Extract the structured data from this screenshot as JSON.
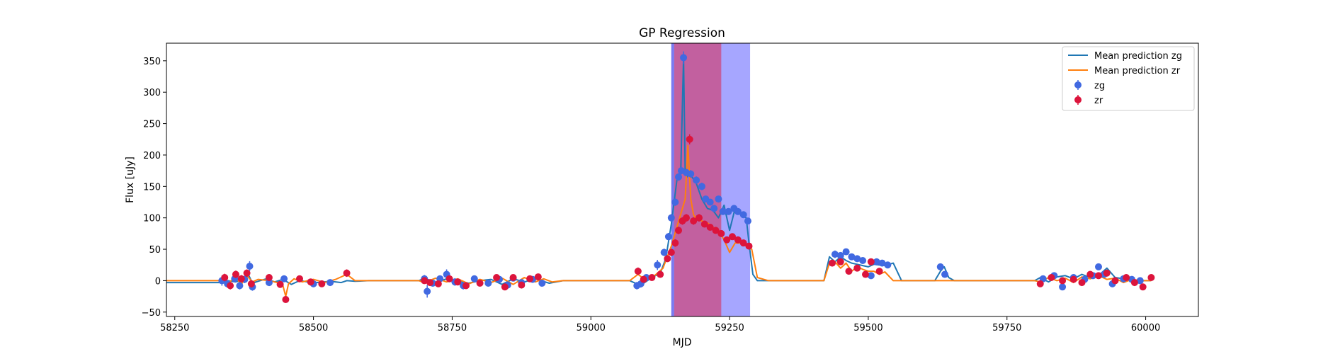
{
  "chart_data": {
    "type": "scatter",
    "title": "GP Regression",
    "xlabel": "MJD",
    "ylabel": "Flux [uJy]",
    "xlim": [
      58235,
      60095
    ],
    "ylim": [
      -57,
      378
    ],
    "xticks": [
      58250,
      58500,
      58750,
      59000,
      59250,
      59500,
      59750,
      60000
    ],
    "xtick_labels": [
      "58250",
      "58500",
      "58750",
      "59000",
      "59250",
      "59500",
      "59750",
      "60000"
    ],
    "yticks": [
      -50,
      0,
      50,
      100,
      150,
      200,
      250,
      300,
      350
    ],
    "ytick_labels": [
      "−50",
      "0",
      "50",
      "100",
      "150",
      "200",
      "250",
      "300",
      "350"
    ],
    "grid": false,
    "legend_position": "top-right",
    "legend": [
      {
        "label": "Mean prediction zg",
        "kind": "line",
        "color": "#1f77b4"
      },
      {
        "label": "Mean prediction zr",
        "kind": "line",
        "color": "#ff7f0e"
      },
      {
        "label": "zg",
        "kind": "errorbar-marker",
        "color": "#4169e1"
      },
      {
        "label": "zr",
        "kind": "errorbar-marker",
        "color": "#dc143c"
      }
    ],
    "shaded_regions": [
      {
        "x0": 59145,
        "x1": 59287,
        "color": "#a6a6ff",
        "alpha": 1
      },
      {
        "x0": 59150,
        "x1": 59235,
        "color": "#c2609f",
        "alpha": 1
      },
      {
        "x0": 59145,
        "x1": 59150,
        "color": "#7a7af0",
        "alpha": 1
      }
    ],
    "series": [
      {
        "name": "Mean prediction zg",
        "kind": "line",
        "color": "#1f77b4",
        "x": [
          58235,
          58330,
          58345,
          58360,
          58375,
          58380,
          58390,
          58400,
          58415,
          58430,
          58445,
          58460,
          58475,
          58490,
          58510,
          58530,
          58550,
          58560,
          58575,
          58600,
          58690,
          58700,
          58720,
          58740,
          58760,
          58780,
          58800,
          58820,
          58840,
          58860,
          58880,
          58900,
          58910,
          58925,
          58950,
          59070,
          59085,
          59095,
          59110,
          59125,
          59135,
          59145,
          59155,
          59162,
          59167,
          59170,
          59173,
          59176,
          59180,
          59190,
          59200,
          59210,
          59220,
          59230,
          59240,
          59250,
          59260,
          59270,
          59280,
          59285,
          59292,
          59300,
          59320,
          59420,
          59430,
          59440,
          59450,
          59460,
          59470,
          59480,
          59490,
          59500,
          59510,
          59520,
          59530,
          59545,
          59560,
          59620,
          59630,
          59637,
          59645,
          59655,
          59800,
          59810,
          59825,
          59840,
          59855,
          59870,
          59885,
          59900,
          59915,
          59930,
          59945,
          59960,
          59975,
          59990,
          60010
        ],
        "y": [
          -3,
          -3,
          0,
          -2,
          2,
          15,
          -4,
          -1,
          3,
          -2,
          2,
          -6,
          0,
          -2,
          -3,
          -1,
          -3,
          0,
          -1,
          0,
          0,
          4,
          -3,
          3,
          -1,
          -4,
          0,
          2,
          -6,
          3,
          -2,
          3,
          0,
          -4,
          0,
          0,
          -6,
          -4,
          5,
          12,
          35,
          90,
          160,
          175,
          355,
          175,
          165,
          170,
          168,
          155,
          130,
          115,
          112,
          100,
          120,
          80,
          115,
          105,
          100,
          60,
          10,
          0,
          0,
          0,
          38,
          30,
          38,
          32,
          28,
          26,
          24,
          22,
          26,
          25,
          24,
          28,
          0,
          0,
          15,
          22,
          5,
          0,
          0,
          5,
          -2,
          6,
          8,
          3,
          10,
          5,
          8,
          20,
          5,
          3,
          2,
          0,
          0
        ]
      },
      {
        "name": "Mean prediction zr",
        "kind": "line",
        "color": "#ff7f0e",
        "x": [
          58235,
          58330,
          58345,
          58360,
          58370,
          58380,
          58390,
          58400,
          58420,
          58435,
          58445,
          58450,
          58455,
          58465,
          58480,
          58500,
          58520,
          58540,
          58560,
          58575,
          58600,
          58690,
          58700,
          58720,
          58740,
          58760,
          58780,
          58800,
          58820,
          58840,
          58860,
          58880,
          58900,
          58915,
          58930,
          58950,
          59070,
          59085,
          59100,
          59115,
          59130,
          59145,
          59160,
          59170,
          59175,
          59180,
          59185,
          59190,
          59200,
          59210,
          59220,
          59230,
          59240,
          59250,
          59260,
          59270,
          59280,
          59290,
          59300,
          59320,
          59420,
          59430,
          59440,
          59450,
          59460,
          59470,
          59480,
          59490,
          59500,
          59510,
          59520,
          59530,
          59545,
          59560,
          59800,
          59810,
          59825,
          59840,
          59855,
          59870,
          59885,
          59900,
          59915,
          59930,
          59945,
          59960,
          59975,
          59990,
          60010
        ],
        "y": [
          0,
          0,
          -4,
          5,
          -6,
          8,
          -2,
          2,
          0,
          -3,
          -8,
          -25,
          -5,
          3,
          -2,
          2,
          -3,
          2,
          10,
          0,
          0,
          0,
          -3,
          4,
          -2,
          3,
          -5,
          2,
          -3,
          4,
          -6,
          5,
          -2,
          3,
          -2,
          0,
          0,
          10,
          0,
          8,
          20,
          55,
          100,
          130,
          215,
          130,
          105,
          98,
          95,
          92,
          85,
          80,
          65,
          45,
          60,
          60,
          55,
          50,
          5,
          0,
          0,
          28,
          30,
          20,
          28,
          15,
          22,
          18,
          15,
          15,
          10,
          14,
          0,
          0,
          0,
          -2,
          5,
          0,
          4,
          -3,
          6,
          3,
          8,
          2,
          4,
          -3,
          2,
          0,
          0
        ]
      },
      {
        "name": "zg",
        "kind": "errorbar",
        "color": "#4169e1",
        "x": [
          58335,
          58345,
          58358,
          58367,
          58376,
          58385,
          58390,
          58420,
          58447,
          58500,
          58530,
          58700,
          58705,
          58715,
          58728,
          58740,
          58755,
          58770,
          58790,
          58815,
          58835,
          58850,
          58860,
          58875,
          58895,
          58912,
          59083,
          59090,
          59100,
          59120,
          59132,
          59140,
          59145,
          59152,
          59158,
          59163,
          59167,
          59172,
          59180,
          59190,
          59200,
          59207,
          59215,
          59222,
          59230,
          59238,
          59248,
          59258,
          59265,
          59275,
          59283,
          59440,
          59450,
          59460,
          59470,
          59480,
          59490,
          59505,
          59515,
          59525,
          59535,
          59630,
          59638,
          59815,
          59835,
          59850,
          59870,
          59890,
          59905,
          59915,
          59925,
          59940,
          59960,
          59975,
          59990
        ],
        "y": [
          0,
          -5,
          3,
          -8,
          2,
          23,
          -10,
          -3,
          3,
          -5,
          -3,
          3,
          -17,
          -4,
          3,
          10,
          -2,
          -8,
          3,
          -4,
          2,
          -7,
          4,
          -3,
          2,
          -4,
          -8,
          -5,
          5,
          25,
          45,
          70,
          100,
          125,
          165,
          175,
          355,
          172,
          170,
          160,
          150,
          130,
          125,
          115,
          130,
          110,
          110,
          115,
          110,
          105,
          95,
          42,
          40,
          46,
          38,
          35,
          32,
          8,
          30,
          28,
          25,
          22,
          10,
          3,
          8,
          -10,
          5,
          2,
          8,
          22,
          10,
          -5,
          3,
          2,
          0
        ],
        "yerr": [
          8,
          6,
          6,
          6,
          6,
          8,
          6,
          5,
          5,
          5,
          5,
          6,
          10,
          5,
          5,
          8,
          6,
          6,
          5,
          5,
          5,
          6,
          5,
          5,
          5,
          5,
          6,
          6,
          5,
          8,
          6,
          6,
          6,
          6,
          6,
          6,
          10,
          6,
          6,
          6,
          6,
          5,
          5,
          5,
          5,
          5,
          5,
          5,
          5,
          5,
          5,
          6,
          5,
          5,
          5,
          5,
          5,
          5,
          5,
          5,
          5,
          5,
          5,
          5,
          5,
          5,
          5,
          5,
          5,
          5,
          5,
          5,
          5,
          5,
          5
        ]
      },
      {
        "name": "zr",
        "kind": "errorbar",
        "color": "#dc143c",
        "x": [
          58340,
          58350,
          58360,
          58370,
          58380,
          58388,
          58420,
          58440,
          58450,
          58475,
          58495,
          58515,
          58560,
          58700,
          58710,
          58725,
          58745,
          58760,
          58775,
          58800,
          58830,
          58845,
          58860,
          58875,
          58890,
          58905,
          59085,
          59095,
          59110,
          59125,
          59138,
          59145,
          59152,
          59158,
          59165,
          59172,
          59178,
          59185,
          59195,
          59205,
          59215,
          59225,
          59235,
          59245,
          59255,
          59265,
          59275,
          59285,
          59435,
          59450,
          59465,
          59480,
          59495,
          59505,
          59520,
          59810,
          59830,
          59850,
          59870,
          59885,
          59900,
          59915,
          59930,
          59945,
          59965,
          59980,
          59995,
          60010
        ],
        "y": [
          5,
          -8,
          10,
          3,
          12,
          -5,
          5,
          -6,
          -30,
          3,
          -2,
          -5,
          12,
          0,
          -3,
          -5,
          3,
          -2,
          -8,
          -4,
          5,
          -10,
          5,
          -7,
          3,
          6,
          15,
          2,
          5,
          10,
          35,
          45,
          60,
          80,
          95,
          100,
          225,
          95,
          100,
          90,
          85,
          80,
          75,
          65,
          70,
          65,
          60,
          55,
          28,
          30,
          15,
          20,
          10,
          30,
          15,
          -5,
          5,
          0,
          2,
          -3,
          10,
          8,
          12,
          0,
          5,
          -3,
          -10,
          5
        ],
        "yerr": [
          6,
          6,
          6,
          6,
          6,
          6,
          5,
          5,
          5,
          5,
          5,
          5,
          6,
          5,
          5,
          5,
          5,
          5,
          5,
          5,
          5,
          5,
          5,
          5,
          5,
          5,
          6,
          5,
          5,
          5,
          5,
          6,
          6,
          6,
          6,
          6,
          8,
          6,
          6,
          5,
          5,
          5,
          5,
          5,
          5,
          5,
          5,
          5,
          5,
          5,
          5,
          5,
          5,
          5,
          5,
          5,
          5,
          5,
          5,
          5,
          5,
          5,
          5,
          5,
          5,
          5,
          5,
          5
        ]
      }
    ]
  }
}
